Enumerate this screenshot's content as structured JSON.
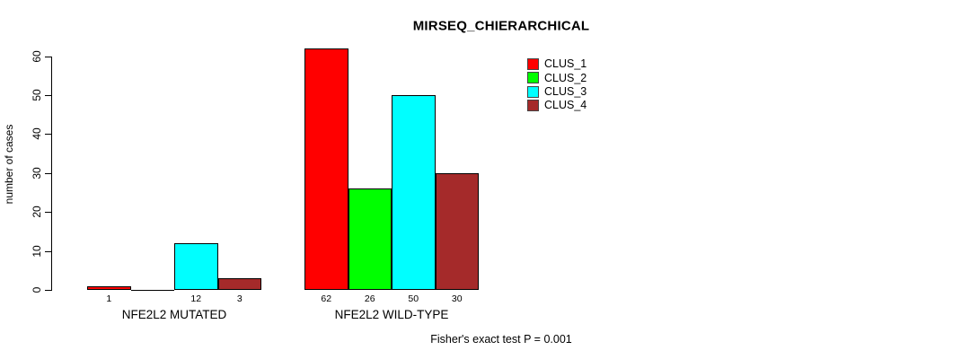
{
  "page": {
    "background": "#FFFFFF"
  },
  "chart_data": {
    "type": "bar",
    "title": "MIRSEQ_CHIERARCHICAL",
    "xlabel": "",
    "ylabel": "number of cases",
    "ylim": [
      0,
      60
    ],
    "yticks": [
      0,
      10,
      20,
      30,
      40,
      50,
      60
    ],
    "grid": false,
    "legend_position": "top-right",
    "groups": [
      "NFE2L2 MUTATED",
      "NFE2L2 WILD-TYPE"
    ],
    "series": [
      {
        "name": "CLUS_1",
        "color": "#FF0000",
        "values": [
          1,
          62
        ]
      },
      {
        "name": "CLUS_2",
        "color": "#00FF00",
        "values": [
          0,
          26
        ]
      },
      {
        "name": "CLUS_3",
        "color": "#00FFFF",
        "values": [
          12,
          50
        ]
      },
      {
        "name": "CLUS_4",
        "color": "#A52A2A",
        "values": [
          3,
          30
        ]
      }
    ],
    "value_labels": [
      [
        "1",
        "",
        "12",
        "3"
      ],
      [
        "62",
        "26",
        "50",
        "30"
      ]
    ],
    "annotation": "Fisher's exact test P = 0.001",
    "bar_border_color": "#000000",
    "text_color": "#000000"
  }
}
